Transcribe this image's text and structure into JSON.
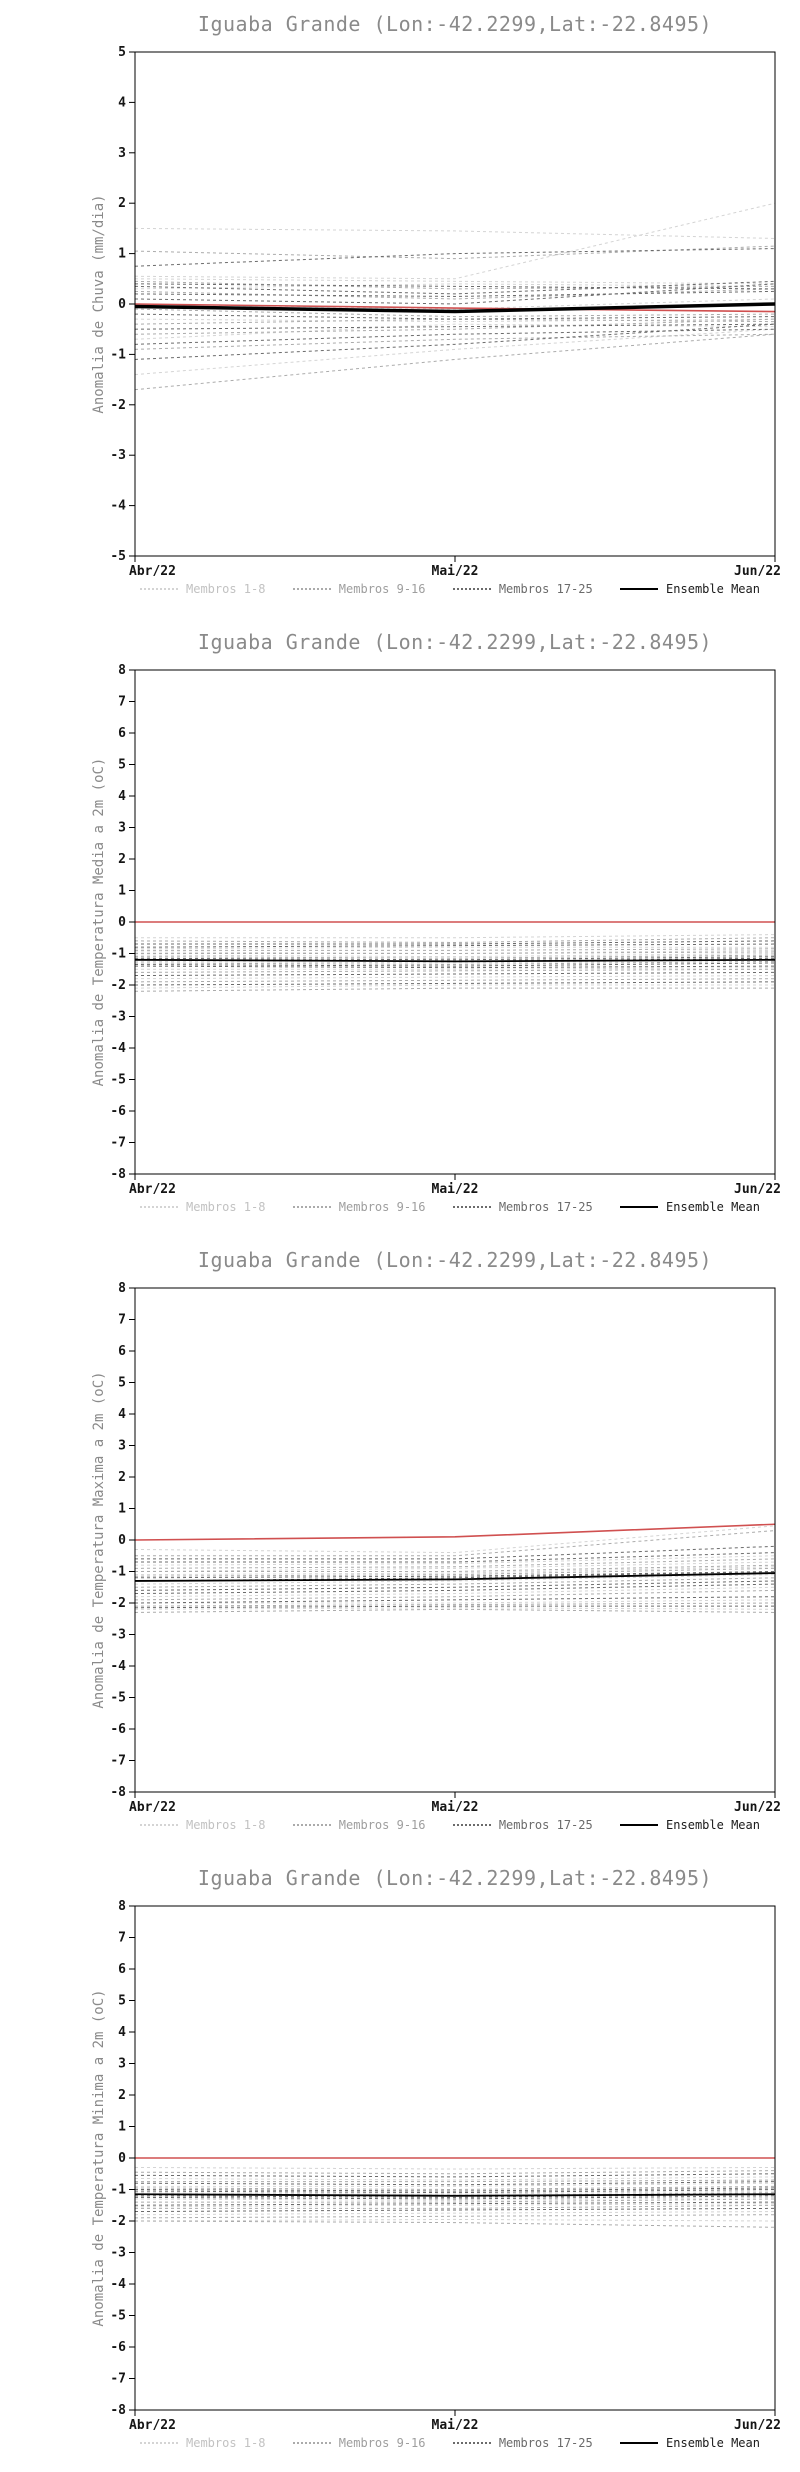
{
  "page": {
    "background": "#ffffff"
  },
  "style": {
    "axis_color": "#000000",
    "title_color": "#8a8a8a",
    "label_color": "#8a8a8a",
    "tick_label_color": "#151515",
    "reference_color": "#d05050"
  },
  "legend": {
    "items": [
      {
        "id": "membros-1-8",
        "label": "Membros 1-8",
        "color": "#d4d4d4",
        "text_color": "#c2c2c2",
        "style": "dotted"
      },
      {
        "id": "membros-9-16",
        "label": "Membros 9-16",
        "color": "#ababab",
        "text_color": "#9e9e9e",
        "style": "dotted"
      },
      {
        "id": "membros-17-25",
        "label": "Membros 17-25",
        "color": "#6b6b6b",
        "text_color": "#6b6b6b",
        "style": "dotted"
      },
      {
        "id": "ensemble-mean",
        "label": "Ensemble Mean",
        "color": "#000000",
        "text_color": "#1a1a1a",
        "style": "solid"
      }
    ]
  },
  "chart_data": [
    {
      "type": "line",
      "title": "Iguaba Grande (Lon:-42.2299,Lat:-22.8495)",
      "ylabel": "Anomalia de Chuva (mm/dia)",
      "xlabel": "",
      "ylim": [
        -5,
        5
      ],
      "ytick_step": 1,
      "x_labels": [
        "Abr/22",
        "Mai/22",
        "Jun/22"
      ],
      "grid": false,
      "legend_position": "bottom",
      "reference_line": [
        0.0,
        -0.08,
        -0.15
      ],
      "ensemble_mean": [
        -0.05,
        -0.15,
        0.0
      ],
      "mean_width": 3.5,
      "members": {
        "group_1_8": [
          [
            1.5,
            1.45,
            1.3
          ],
          [
            0.55,
            0.5,
            2.0
          ],
          [
            0.5,
            0.45,
            0.4
          ],
          [
            0.3,
            0.4,
            0.35
          ],
          [
            0.0,
            -0.1,
            0.1
          ],
          [
            -0.3,
            -0.35,
            -0.3
          ],
          [
            -0.7,
            -0.4,
            -0.45
          ],
          [
            -1.4,
            -0.9,
            -0.5
          ]
        ],
        "group_9_16": [
          [
            1.05,
            0.9,
            1.15
          ],
          [
            0.45,
            0.3,
            0.35
          ],
          [
            0.25,
            0.1,
            0.3
          ],
          [
            -0.1,
            -0.25,
            -0.2
          ],
          [
            -0.4,
            -0.3,
            -0.35
          ],
          [
            -0.6,
            -0.5,
            -0.3
          ],
          [
            -0.9,
            -0.7,
            -0.6
          ],
          [
            -1.7,
            -1.1,
            -0.6
          ]
        ],
        "group_17_25": [
          [
            0.75,
            1.0,
            1.1
          ],
          [
            0.4,
            0.35,
            0.3
          ],
          [
            0.35,
            0.2,
            0.45
          ],
          [
            0.2,
            0.15,
            0.25
          ],
          [
            0.1,
            0.0,
            0.4
          ],
          [
            -0.2,
            -0.3,
            -0.25
          ],
          [
            -0.5,
            -0.45,
            -0.4
          ],
          [
            -0.8,
            -0.6,
            -0.5
          ],
          [
            -1.1,
            -0.8,
            -0.4
          ]
        ]
      }
    },
    {
      "type": "line",
      "title": "Iguaba Grande (Lon:-42.2299,Lat:-22.8495)",
      "ylabel": "Anomalia de Temperatura Media a 2m (oC)",
      "xlabel": "",
      "ylim": [
        -8,
        8
      ],
      "ytick_step": 1,
      "x_labels": [
        "Abr/22",
        "Mai/22",
        "Jun/22"
      ],
      "grid": false,
      "legend_position": "bottom",
      "reference_line": [
        0.0,
        0.0,
        0.0
      ],
      "ensemble_mean": [
        -1.2,
        -1.25,
        -1.2
      ],
      "mean_width": 1.8,
      "members": {
        "group_1_8": [
          [
            -0.5,
            -0.5,
            -0.4
          ],
          [
            -0.85,
            -0.8,
            -0.8
          ],
          [
            -1.05,
            -1.1,
            -1.0
          ],
          [
            -1.25,
            -1.3,
            -1.2
          ],
          [
            -1.5,
            -1.5,
            -1.45
          ],
          [
            -1.8,
            -1.75,
            -1.7
          ],
          [
            -2.1,
            -2.0,
            -2.0
          ],
          [
            -0.95,
            -1.0,
            -0.9
          ]
        ],
        "group_9_16": [
          [
            -0.6,
            -0.65,
            -0.5
          ],
          [
            -0.9,
            -0.9,
            -0.85
          ],
          [
            -1.1,
            -1.15,
            -1.05
          ],
          [
            -1.3,
            -1.35,
            -1.25
          ],
          [
            -1.6,
            -1.55,
            -1.5
          ],
          [
            -1.9,
            -1.85,
            -1.8
          ],
          [
            -2.2,
            -2.1,
            -2.1
          ],
          [
            -1.0,
            -1.0,
            -0.95
          ]
        ],
        "group_17_25": [
          [
            -0.7,
            -0.7,
            -0.6
          ],
          [
            -0.8,
            -0.75,
            -0.7
          ],
          [
            -1.15,
            -1.2,
            -1.1
          ],
          [
            -1.35,
            -1.4,
            -1.3
          ],
          [
            -1.4,
            -1.45,
            -1.4
          ],
          [
            -1.7,
            -1.65,
            -1.6
          ],
          [
            -2.0,
            -1.95,
            -1.9
          ],
          [
            -1.2,
            -1.25,
            -1.15
          ]
        ]
      }
    },
    {
      "type": "line",
      "title": "Iguaba Grande (Lon:-42.2299,Lat:-22.8495)",
      "ylabel": "Anomalia de Temperatura Maxima a 2m (oC)",
      "xlabel": "",
      "ylim": [
        -8,
        8
      ],
      "ytick_step": 1,
      "x_labels": [
        "Abr/22",
        "Mai/22",
        "Jun/22"
      ],
      "grid": false,
      "legend_position": "bottom",
      "reference_line": [
        0.0,
        0.1,
        0.5
      ],
      "ensemble_mean": [
        -1.3,
        -1.25,
        -1.05
      ],
      "mean_width": 1.8,
      "members": {
        "group_1_8": [
          [
            -0.3,
            -0.4,
            0.45
          ],
          [
            -0.8,
            -0.75,
            -0.5
          ],
          [
            -1.1,
            -1.05,
            -0.85
          ],
          [
            -1.4,
            -1.3,
            -1.1
          ],
          [
            -1.8,
            -1.7,
            -1.5
          ],
          [
            -2.0,
            -2.0,
            -1.9
          ],
          [
            -2.2,
            -2.15,
            -2.2
          ],
          [
            -1.0,
            -0.9,
            -0.7
          ]
        ],
        "group_9_16": [
          [
            -0.5,
            -0.5,
            0.3
          ],
          [
            -0.9,
            -0.85,
            -0.6
          ],
          [
            -1.15,
            -1.1,
            -0.9
          ],
          [
            -1.5,
            -1.4,
            -1.2
          ],
          [
            -1.9,
            -1.8,
            -1.6
          ],
          [
            -2.1,
            -2.05,
            -2.0
          ],
          [
            -2.3,
            -2.2,
            -2.3
          ],
          [
            -1.0,
            -1.0,
            -0.8
          ]
        ],
        "group_17_25": [
          [
            -0.6,
            -0.6,
            -0.2
          ],
          [
            -0.7,
            -0.7,
            -0.4
          ],
          [
            -1.2,
            -1.15,
            -1.0
          ],
          [
            -1.3,
            -1.2,
            -1.0
          ],
          [
            -1.6,
            -1.5,
            -1.3
          ],
          [
            -1.7,
            -1.6,
            -1.4
          ],
          [
            -2.0,
            -1.9,
            -1.8
          ],
          [
            -2.15,
            -2.1,
            -2.1
          ]
        ]
      }
    },
    {
      "type": "line",
      "title": "Iguaba Grande (Lon:-42.2299,Lat:-22.8495)",
      "ylabel": "Anomalia de Temperatura Minima a 2m (oC)",
      "xlabel": "",
      "ylim": [
        -8,
        8
      ],
      "ytick_step": 1,
      "x_labels": [
        "Abr/22",
        "Mai/22",
        "Jun/22"
      ],
      "grid": false,
      "legend_position": "bottom",
      "reference_line": [
        0.0,
        0.0,
        0.0
      ],
      "ensemble_mean": [
        -1.15,
        -1.2,
        -1.15
      ],
      "mean_width": 1.8,
      "members": {
        "group_1_8": [
          [
            -0.3,
            -0.35,
            -0.3
          ],
          [
            -0.65,
            -0.7,
            -0.6
          ],
          [
            -0.9,
            -0.9,
            -0.8
          ],
          [
            -1.1,
            -1.15,
            -1.05
          ],
          [
            -1.3,
            -1.35,
            -1.25
          ],
          [
            -1.55,
            -1.5,
            -1.45
          ],
          [
            -1.8,
            -1.75,
            -1.7
          ],
          [
            -2.0,
            -1.95,
            -2.0
          ]
        ],
        "group_9_16": [
          [
            -0.45,
            -0.5,
            -0.4
          ],
          [
            -0.75,
            -0.75,
            -0.7
          ],
          [
            -0.95,
            -1.0,
            -0.9
          ],
          [
            -1.15,
            -1.2,
            -1.1
          ],
          [
            -1.4,
            -1.4,
            -1.3
          ],
          [
            -1.6,
            -1.6,
            -1.5
          ],
          [
            -1.9,
            -1.85,
            -1.8
          ],
          [
            -2.0,
            -2.05,
            -2.2
          ]
        ],
        "group_17_25": [
          [
            -0.55,
            -0.6,
            -0.5
          ],
          [
            -0.8,
            -0.85,
            -0.75
          ],
          [
            -1.0,
            -1.05,
            -0.95
          ],
          [
            -1.2,
            -1.25,
            -1.15
          ],
          [
            -1.25,
            -1.3,
            -1.2
          ],
          [
            -1.5,
            -1.45,
            -1.4
          ],
          [
            -1.7,
            -1.65,
            -1.6
          ],
          [
            -1.05,
            -1.1,
            -1.0
          ]
        ]
      }
    }
  ]
}
